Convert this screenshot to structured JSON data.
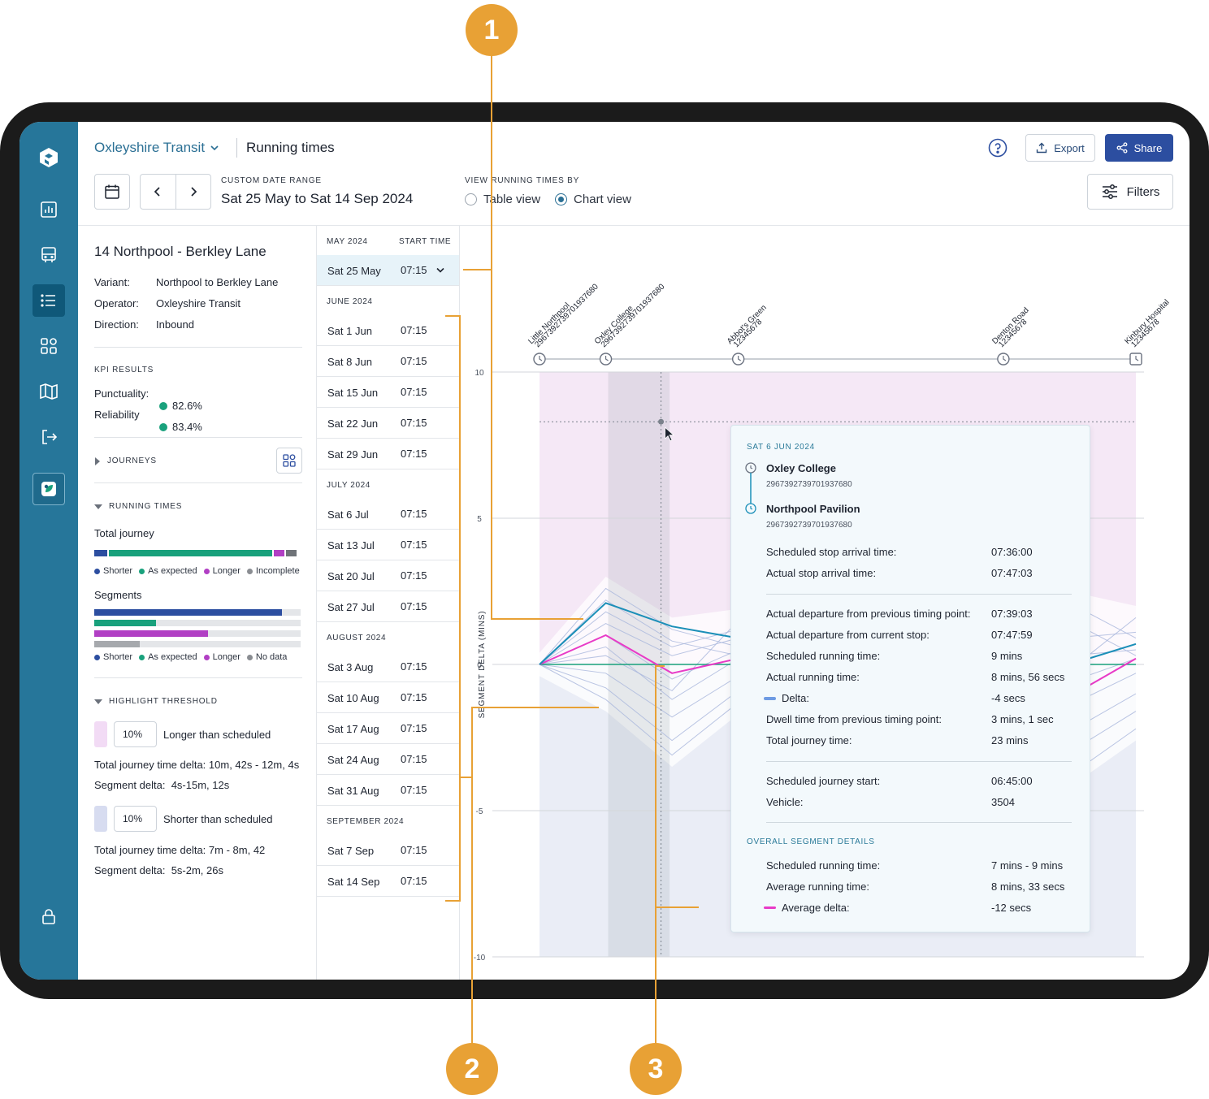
{
  "header": {
    "org": "Oxleyshire Transit",
    "page_title": "Running times",
    "export_label": "Export",
    "share_label": "Share",
    "date_range_caption": "CUSTOM DATE RANGE",
    "date_range": "Sat 25 May to Sat 14 Sep 2024",
    "view_caption": "VIEW RUNNING TIMES BY",
    "view_options": [
      "Table view",
      "Chart view"
    ],
    "view_selected": "Chart view",
    "filters_label": "Filters"
  },
  "route": {
    "title": "14 Northpool - Berkley Lane",
    "details": [
      {
        "label": "Variant:",
        "value": "Northpool to Berkley Lane"
      },
      {
        "label": "Operator:",
        "value": "Oxleyshire Transit"
      },
      {
        "label": "Direction:",
        "value": "Inbound"
      }
    ],
    "kpi_caption": "KPI RESULTS",
    "kpis": [
      {
        "label": "Punctuality:",
        "value": "82.6%"
      },
      {
        "label": "Reliability",
        "value": "83.4%"
      }
    ],
    "journeys_caption": "JOURNEYS",
    "running_caption": "RUNNING TIMES",
    "total_journey_label": "Total journey",
    "total_journey_split": {
      "shorter": 0.07,
      "as_expected": 0.8,
      "longer": 0.06,
      "incomplete": 0.06
    },
    "legend_total": [
      "Shorter",
      "As expected",
      "Longer",
      "Incomplete"
    ],
    "segments_label": "Segments",
    "segment_levels": {
      "shorter": 0.91,
      "as_expected": 0.3,
      "longer": 0.55,
      "no_data": 0.22
    },
    "legend_segments": [
      "Shorter",
      "As expected",
      "Longer",
      "No data"
    ],
    "threshold_caption": "HIGHLIGHT THRESHOLD",
    "longer": {
      "pct": "10%",
      "label": "Longer than scheduled",
      "total_delta_label": "Total journey time delta:",
      "total_delta": "10m, 42s - 12m, 4s",
      "segment_delta_label": "Segment delta:",
      "segment_delta": "4s-15m, 12s"
    },
    "shorter": {
      "pct": "10%",
      "label": "Shorter than scheduled",
      "total_delta_label": "Total journey time delta:",
      "total_delta": "7m - 8m, 42",
      "segment_delta_label": "Segment delta:",
      "segment_delta": "5s-2m, 26s"
    }
  },
  "dates": {
    "col_start": "START TIME",
    "groups": [
      {
        "month": "MAY 2024",
        "rows": [
          {
            "date": "Sat 25 May",
            "time": "07:15",
            "selected": true
          }
        ]
      },
      {
        "month": "JUNE 2024",
        "rows": [
          {
            "date": "Sat 1 Jun",
            "time": "07:15"
          },
          {
            "date": "Sat 8 Jun",
            "time": "07:15"
          },
          {
            "date": "Sat 15 Jun",
            "time": "07:15"
          },
          {
            "date": "Sat 22 Jun",
            "time": "07:15"
          },
          {
            "date": "Sat 29 Jun",
            "time": "07:15"
          }
        ]
      },
      {
        "month": "JULY 2024",
        "rows": [
          {
            "date": "Sat 6 Jul",
            "time": "07:15"
          },
          {
            "date": "Sat 13 Jul",
            "time": "07:15"
          },
          {
            "date": "Sat 20 Jul",
            "time": "07:15"
          },
          {
            "date": "Sat 27 Jul",
            "time": "07:15"
          }
        ]
      },
      {
        "month": "AUGUST 2024",
        "rows": [
          {
            "date": "Sat 3 Aug",
            "time": "07:15"
          },
          {
            "date": "Sat 10 Aug",
            "time": "07:15"
          },
          {
            "date": "Sat 17 Aug",
            "time": "07:15"
          },
          {
            "date": "Sat 24 Aug",
            "time": "07:15"
          },
          {
            "date": "Sat 31 Aug",
            "time": "07:15"
          }
        ]
      },
      {
        "month": "SEPTEMBER 2024",
        "rows": [
          {
            "date": "Sat 7 Sep",
            "time": "07:15"
          },
          {
            "date": "Sat 14 Sep",
            "time": "07:15"
          }
        ]
      }
    ]
  },
  "chart_data": {
    "type": "line",
    "ylabel": "SEGMENT DELTA (MINS)",
    "ylim": [
      -10,
      10
    ],
    "yticks": [
      10,
      5,
      0,
      -5,
      -10
    ],
    "stops": [
      {
        "name": "Little Northpool",
        "code": "2967392739701937680",
        "x": 0
      },
      {
        "name": "Oxley College",
        "code": "2967392739701937680",
        "x": 1
      },
      {
        "name": "Abbot's Green",
        "code": "12345678",
        "x": 3
      },
      {
        "name": "Denton Road",
        "code": "12345678",
        "x": 7
      },
      {
        "name": "Kinbury Hospital",
        "code": "12345678",
        "x": 9
      }
    ],
    "x_points": [
      0,
      1,
      2,
      3,
      4,
      5,
      6,
      7,
      8,
      9
    ],
    "highlight_segment": [
      1,
      2
    ],
    "selected_series": [
      0,
      2.1,
      1.3,
      0.9,
      0.7,
      0.8,
      1.0,
      1.1,
      0,
      0.7
    ],
    "average_series": [
      0,
      1,
      -0.3,
      0.2,
      0.4,
      0.2,
      0,
      0.1,
      -1.1,
      0.2
    ],
    "background_series": [
      [
        0,
        2.6,
        1.2,
        0.6,
        0.9,
        1.8,
        2.3,
        1.9,
        2.1,
        0.9
      ],
      [
        0,
        2.2,
        0.8,
        0.3,
        0.6,
        1.2,
        1.9,
        1.2,
        1.5,
        0.3
      ],
      [
        0,
        1.8,
        0.6,
        1.2,
        0.4,
        0.8,
        1.6,
        1.9,
        0.9,
        1.1
      ],
      [
        0,
        1.4,
        0.3,
        0.9,
        1.1,
        0.3,
        1.1,
        0.7,
        0.3,
        0.5
      ],
      [
        0,
        1.0,
        -0.5,
        0.5,
        0.8,
        0.5,
        0.6,
        0.2,
        -0.6,
        0.2
      ],
      [
        0,
        0.6,
        -1.2,
        0.2,
        0.2,
        -0.1,
        0.2,
        -0.4,
        -1.4,
        -0.3
      ],
      [
        0,
        -0.3,
        -1.8,
        -0.4,
        -0.2,
        -0.6,
        -0.3,
        -0.9,
        -2.3,
        -1.0
      ],
      [
        0,
        -0.8,
        -2.6,
        -0.9,
        -0.7,
        -1.1,
        -0.8,
        -1.5,
        -3.0,
        -1.6
      ],
      [
        0,
        -1.2,
        -3.1,
        -1.3,
        -1.2,
        -1.5,
        -1.2,
        -2.0,
        -3.8,
        -2.2
      ],
      [
        0,
        0.3,
        -0.9,
        1.5,
        1.3,
        0.2,
        0.8,
        1.4,
        -0.2,
        1.6
      ]
    ],
    "tooltip": {
      "date": "SAT 6 JUN 2024",
      "from_stop": "Oxley College",
      "from_code": "2967392739701937680",
      "to_stop": "Northpool Pavilion",
      "to_code": "2967392739701937680",
      "rows_a": [
        {
          "label": "Scheduled stop arrival time:",
          "value": "07:36:00"
        },
        {
          "label": "Actual stop arrival time:",
          "value": "07:47:03"
        }
      ],
      "rows_b": [
        {
          "label": "Actual departure from previous timing point:",
          "value": "07:39:03"
        },
        {
          "label": "Actual departure from current stop:",
          "value": "07:47:59"
        },
        {
          "label": "Scheduled running time:",
          "value": "9 mins"
        },
        {
          "label": "Actual running time:",
          "value": "8 mins, 56 secs"
        },
        {
          "label": "Delta:",
          "value": "-4 secs"
        },
        {
          "label": "Dwell time from previous timing point:",
          "value": "3 mins, 1 sec"
        },
        {
          "label": "Total journey time:",
          "value": "23 mins"
        }
      ],
      "rows_c": [
        {
          "label": "Scheduled journey start:",
          "value": "06:45:00"
        },
        {
          "label": "Vehicle:",
          "value": "3504"
        }
      ],
      "overall_caption": "OVERALL SEGMENT DETAILS",
      "rows_d": [
        {
          "label": "Scheduled running time:",
          "value": "7 mins - 9 mins"
        },
        {
          "label": "Average running time:",
          "value": "8 mins, 33 secs"
        },
        {
          "label": "Average delta:",
          "value": "-12 secs"
        }
      ]
    }
  },
  "callouts": [
    "1",
    "2",
    "3"
  ],
  "colors": {
    "rail": "#26769a",
    "accent": "#2a6f94",
    "share": "#2c4ea0",
    "shorter": "#2c4ea0",
    "as_expected": "#19a17c",
    "longer": "#b13fc4",
    "incomplete": "#8a8d92",
    "callout": "#e8a135",
    "selected_line": "#1b8fb8",
    "average_line": "#e83bc7"
  }
}
